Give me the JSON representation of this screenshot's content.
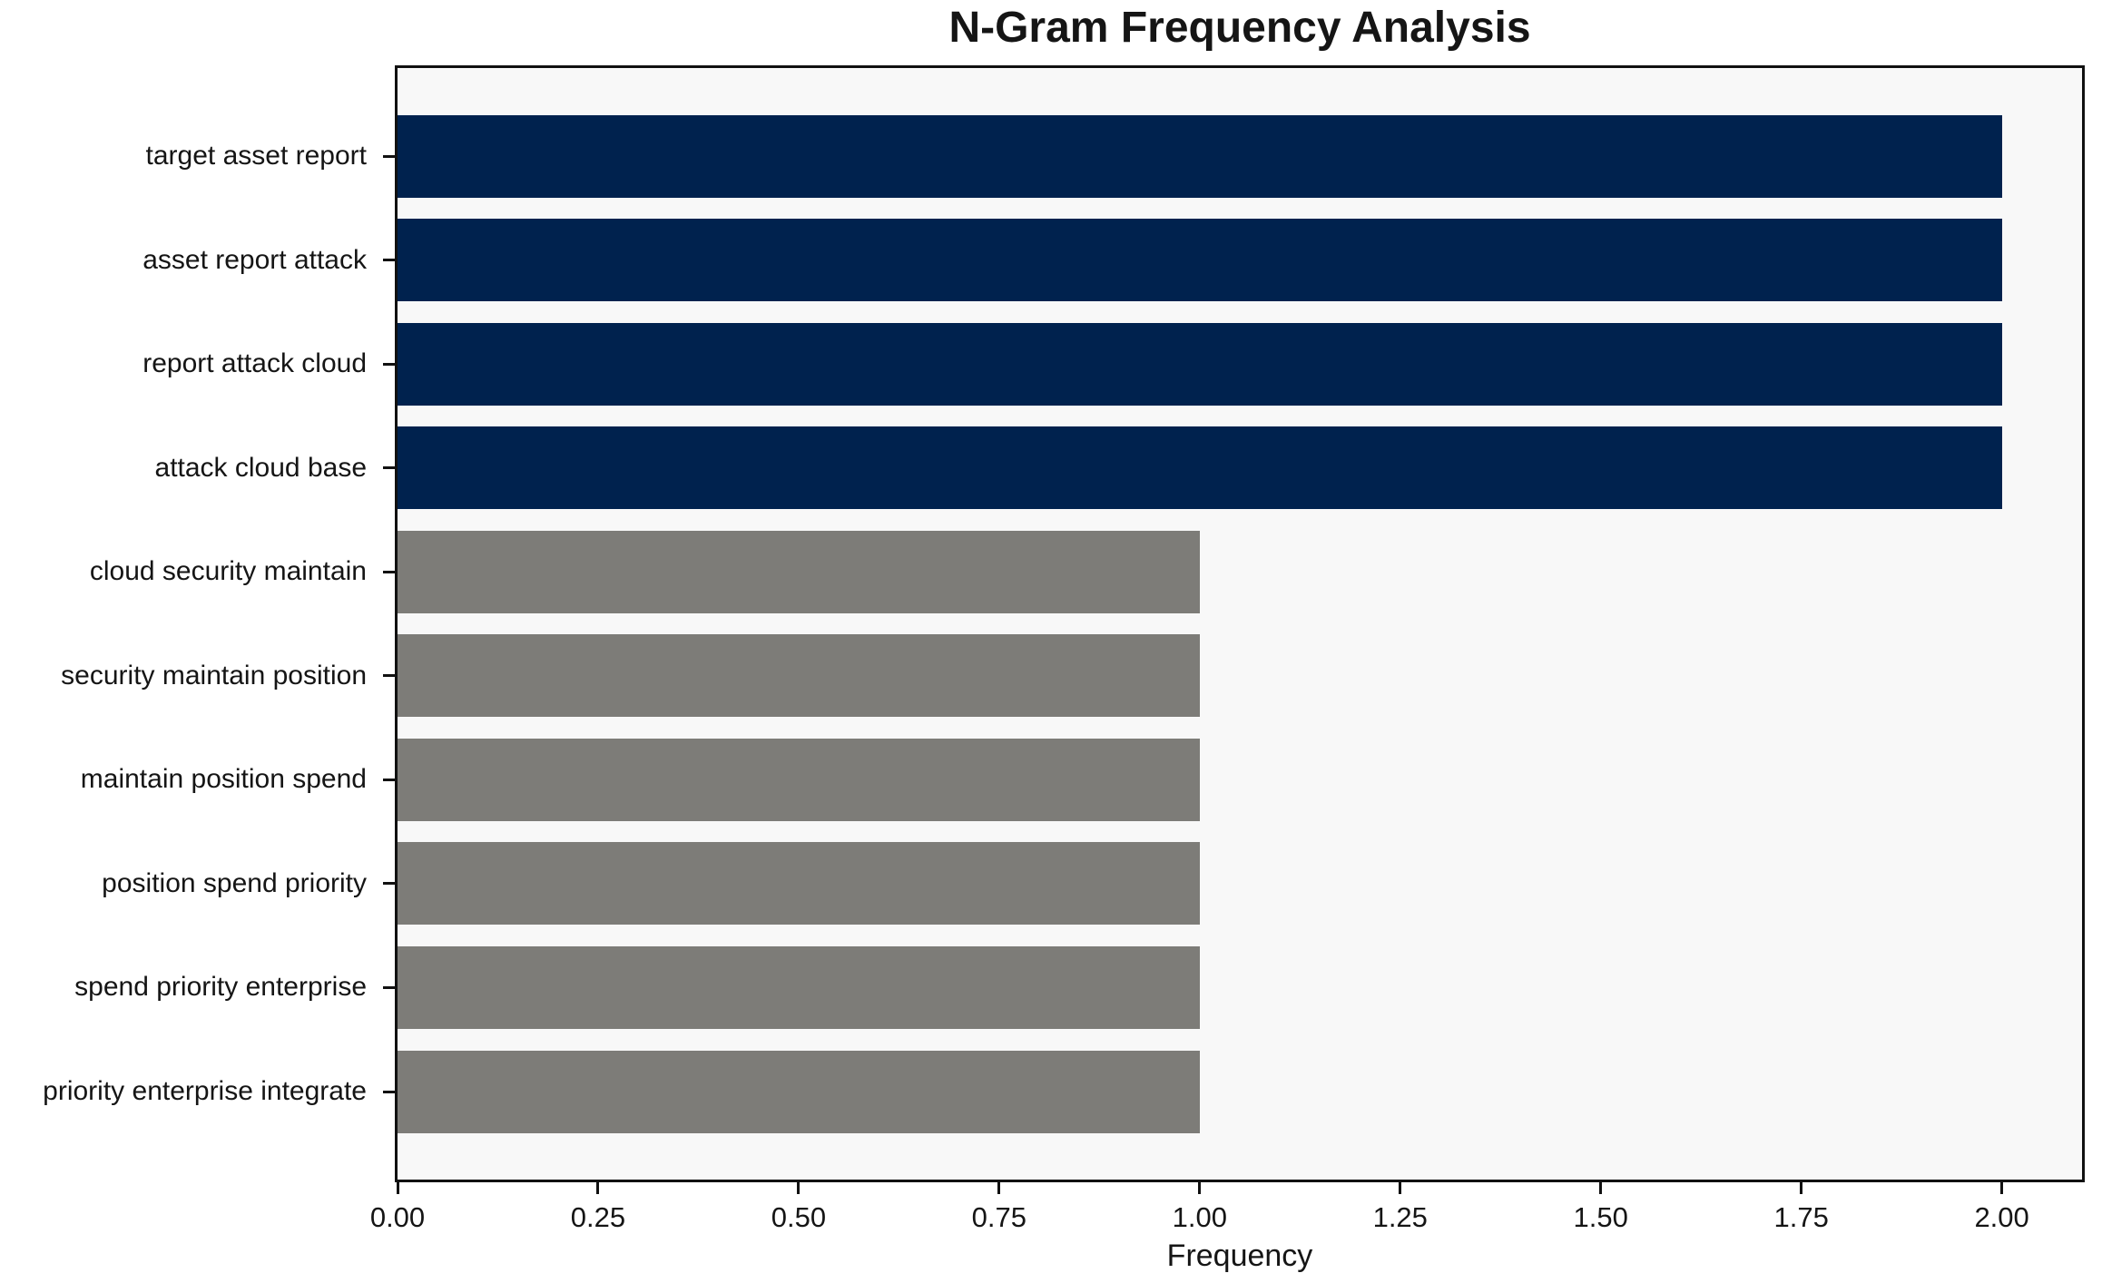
{
  "title": "N-Gram Frequency Analysis",
  "chart_data": {
    "type": "bar",
    "orientation": "horizontal",
    "title": "N-Gram Frequency Analysis",
    "xlabel": "Frequency",
    "ylabel": "",
    "categories": [
      "target asset report",
      "asset report attack",
      "report attack cloud",
      "attack cloud base",
      "cloud security maintain",
      "security maintain position",
      "maintain position spend",
      "position spend priority",
      "spend priority enterprise",
      "priority enterprise integrate"
    ],
    "values": [
      2,
      2,
      2,
      2,
      1,
      1,
      1,
      1,
      1,
      1
    ],
    "bar_colors": [
      "#00224e",
      "#00224e",
      "#00224e",
      "#00224e",
      "#7d7c78",
      "#7d7c78",
      "#7d7c78",
      "#7d7c78",
      "#7d7c78",
      "#7d7c78"
    ],
    "xlim": [
      0,
      2.1
    ],
    "xticks": [
      {
        "value": 0.0,
        "label": "0.00"
      },
      {
        "value": 0.25,
        "label": "0.25"
      },
      {
        "value": 0.5,
        "label": "0.50"
      },
      {
        "value": 0.75,
        "label": "0.75"
      },
      {
        "value": 1.0,
        "label": "1.00"
      },
      {
        "value": 1.25,
        "label": "1.25"
      },
      {
        "value": 1.5,
        "label": "1.50"
      },
      {
        "value": 1.75,
        "label": "1.75"
      },
      {
        "value": 2.0,
        "label": "2.00"
      }
    ],
    "grid": false,
    "legend": null,
    "colors": {
      "high_freq_bar": "#00224e",
      "low_freq_bar": "#7d7c78",
      "plot_background": "#f8f8f8",
      "figure_background": "#ffffff",
      "spine": "#111111",
      "text": "#151515"
    }
  }
}
